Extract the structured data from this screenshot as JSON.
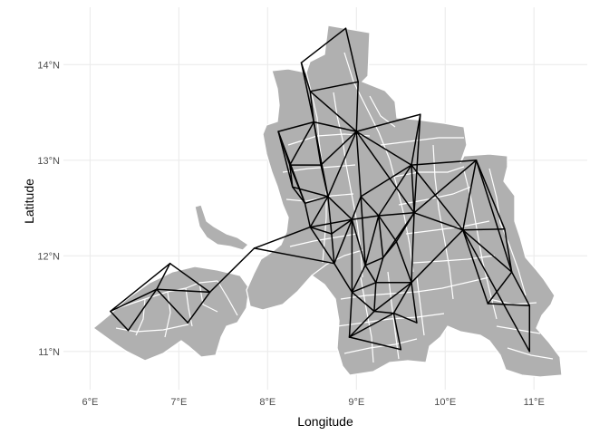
{
  "chart_data": {
    "type": "map",
    "xlabel": "Longitude",
    "ylabel": "Latitude",
    "x_ticks": [
      {
        "value": 6,
        "label": "6°E"
      },
      {
        "value": 7,
        "label": "7°E"
      },
      {
        "value": 8,
        "label": "8°E"
      },
      {
        "value": 9,
        "label": "9°E"
      },
      {
        "value": 10,
        "label": "10°E"
      },
      {
        "value": 11,
        "label": "11°E"
      }
    ],
    "y_ticks": [
      {
        "value": 11,
        "label": "11°N"
      },
      {
        "value": 12,
        "label": "12°N"
      },
      {
        "value": 13,
        "label": "13°N"
      },
      {
        "value": 14,
        "label": "14°N"
      }
    ],
    "xlim": [
      5.7,
      11.6
    ],
    "ylim": [
      10.6,
      14.6
    ],
    "grid": true,
    "colors": {
      "land": "#b0b0b0",
      "boundary": "#ffffff",
      "edge": "#000000",
      "grid": "#ebebeb"
    },
    "nodes": [
      [
        6.23,
        11.42
      ],
      [
        6.43,
        11.22
      ],
      [
        6.75,
        11.65
      ],
      [
        6.9,
        11.92
      ],
      [
        7.1,
        11.3
      ],
      [
        7.35,
        11.62
      ],
      [
        7.85,
        12.08
      ],
      [
        8.12,
        13.3
      ],
      [
        8.25,
        12.95
      ],
      [
        8.28,
        12.72
      ],
      [
        8.42,
        12.55
      ],
      [
        8.48,
        12.3
      ],
      [
        8.52,
        13.4
      ],
      [
        8.6,
        12.95
      ],
      [
        8.68,
        12.62
      ],
      [
        8.72,
        12.23
      ],
      [
        8.75,
        11.92
      ],
      [
        8.48,
        13.72
      ],
      [
        8.38,
        14.02
      ],
      [
        8.88,
        14.38
      ],
      [
        9.02,
        13.82
      ],
      [
        9.0,
        13.3
      ],
      [
        8.95,
        12.38
      ],
      [
        9.05,
        12.62
      ],
      [
        8.95,
        11.62
      ],
      [
        8.92,
        11.15
      ],
      [
        9.1,
        11.9
      ],
      [
        9.25,
        12.42
      ],
      [
        9.22,
        11.72
      ],
      [
        9.3,
        11.98
      ],
      [
        9.2,
        11.42
      ],
      [
        9.45,
        12.15
      ],
      [
        9.42,
        11.4
      ],
      [
        9.5,
        11.02
      ],
      [
        9.62,
        12.95
      ],
      [
        9.72,
        13.48
      ],
      [
        9.65,
        12.45
      ],
      [
        9.62,
        11.72
      ],
      [
        9.68,
        11.3
      ],
      [
        10.2,
        12.27
      ],
      [
        10.35,
        13.0
      ],
      [
        10.67,
        12.28
      ],
      [
        10.48,
        11.5
      ],
      [
        10.75,
        11.83
      ],
      [
        10.95,
        11.48
      ],
      [
        10.95,
        11.0
      ]
    ],
    "edges": [
      [
        0,
        1
      ],
      [
        0,
        2
      ],
      [
        0,
        3
      ],
      [
        1,
        2
      ],
      [
        2,
        3
      ],
      [
        2,
        4
      ],
      [
        3,
        5
      ],
      [
        2,
        5
      ],
      [
        4,
        5
      ],
      [
        5,
        6
      ],
      [
        6,
        11
      ],
      [
        6,
        16
      ],
      [
        7,
        8
      ],
      [
        7,
        9
      ],
      [
        7,
        12
      ],
      [
        7,
        10
      ],
      [
        8,
        9
      ],
      [
        8,
        12
      ],
      [
        8,
        13
      ],
      [
        8,
        10
      ],
      [
        9,
        10
      ],
      [
        9,
        14
      ],
      [
        10,
        11
      ],
      [
        10,
        14
      ],
      [
        11,
        14
      ],
      [
        11,
        15
      ],
      [
        11,
        16
      ],
      [
        11,
        22
      ],
      [
        12,
        13
      ],
      [
        12,
        14
      ],
      [
        12,
        17
      ],
      [
        12,
        21
      ],
      [
        12,
        18
      ],
      [
        13,
        14
      ],
      [
        13,
        21
      ],
      [
        14,
        15
      ],
      [
        14,
        22
      ],
      [
        14,
        21
      ],
      [
        15,
        22
      ],
      [
        15,
        16
      ],
      [
        16,
        24
      ],
      [
        16,
        22
      ],
      [
        17,
        18
      ],
      [
        17,
        20
      ],
      [
        17,
        21
      ],
      [
        18,
        19
      ],
      [
        19,
        20
      ],
      [
        20,
        21
      ],
      [
        21,
        23
      ],
      [
        21,
        34
      ],
      [
        21,
        35
      ],
      [
        22,
        23
      ],
      [
        22,
        26
      ],
      [
        22,
        27
      ],
      [
        22,
        24
      ],
      [
        23,
        27
      ],
      [
        23,
        34
      ],
      [
        23,
        26
      ],
      [
        24,
        26
      ],
      [
        24,
        28
      ],
      [
        24,
        30
      ],
      [
        24,
        25
      ],
      [
        25,
        30
      ],
      [
        25,
        33
      ],
      [
        25,
        32
      ],
      [
        26,
        27
      ],
      [
        26,
        28
      ],
      [
        26,
        29
      ],
      [
        27,
        29
      ],
      [
        27,
        31
      ],
      [
        27,
        34
      ],
      [
        28,
        29
      ],
      [
        28,
        30
      ],
      [
        28,
        37
      ],
      [
        29,
        31
      ],
      [
        29,
        36
      ],
      [
        30,
        32
      ],
      [
        30,
        37
      ],
      [
        31,
        36
      ],
      [
        31,
        37
      ],
      [
        32,
        33
      ],
      [
        32,
        38
      ],
      [
        32,
        37
      ],
      [
        34,
        35
      ],
      [
        34,
        36
      ],
      [
        34,
        39
      ],
      [
        34,
        40
      ],
      [
        35,
        36
      ],
      [
        36,
        39
      ],
      [
        36,
        37
      ],
      [
        37,
        38
      ],
      [
        37,
        39
      ],
      [
        39,
        40
      ],
      [
        39,
        41
      ],
      [
        39,
        43
      ],
      [
        39,
        42
      ],
      [
        40,
        41
      ],
      [
        40,
        43
      ],
      [
        41,
        43
      ],
      [
        42,
        43
      ],
      [
        42,
        44
      ],
      [
        43,
        44
      ],
      [
        44,
        45
      ],
      [
        39,
        45
      ],
      [
        36,
        40
      ],
      [
        21,
        36
      ],
      [
        27,
        36
      ]
    ]
  }
}
